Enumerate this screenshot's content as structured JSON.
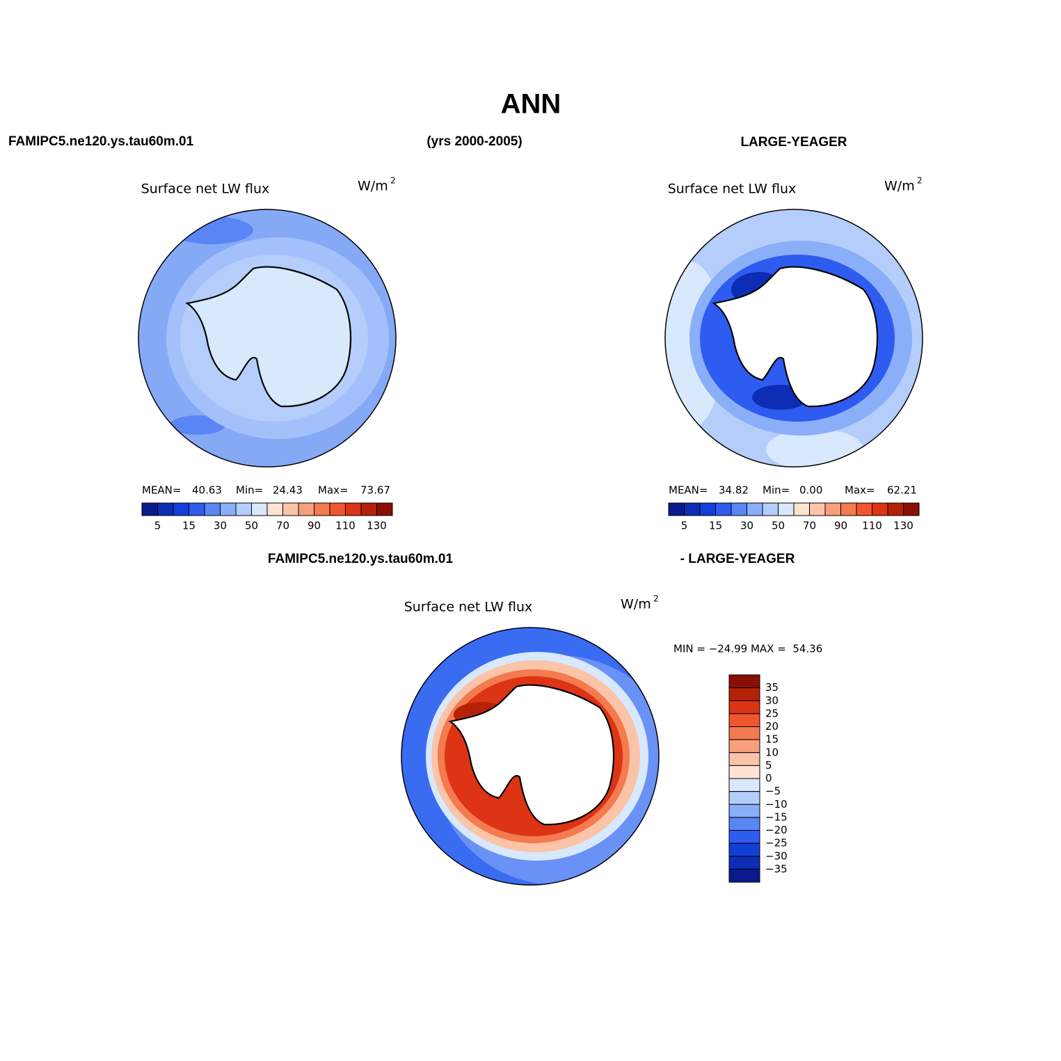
{
  "title": "ANN",
  "header": {
    "left": "FAMIPC5.ne120.ys.tau60m.01",
    "center": "(yrs 2000-2005)",
    "right": "LARGE-YEAGER"
  },
  "panels": [
    {
      "title": "Surface net LW flux",
      "units": "W/m",
      "units_sup": "2",
      "stats": [
        "MEAN=",
        "40.63",
        "Min=",
        "24.43",
        "Max=",
        "73.67"
      ],
      "colorbar_labels": [
        "5",
        "15",
        "30",
        "50",
        "70",
        "90",
        "110",
        "130"
      ]
    },
    {
      "title": "Surface net LW flux",
      "units": "W/m",
      "units_sup": "2",
      "stats": [
        "MEAN=",
        "34.82",
        "Min=",
        "0.00",
        "Max=",
        "62.21"
      ],
      "colorbar_labels": [
        "5",
        "15",
        "30",
        "50",
        "70",
        "90",
        "110",
        "130"
      ]
    }
  ],
  "colorbar_colors": [
    "#0a1a8c",
    "#0c2db4",
    "#1040d8",
    "#2e5cf0",
    "#5a86f5",
    "#8aaef8",
    "#b4cdfb",
    "#d8e8fd",
    "#fde3d2",
    "#fbc4a8",
    "#f7a07c",
    "#f47a50",
    "#f0562e",
    "#dc3414",
    "#b52208",
    "#8a0f04"
  ],
  "difference": {
    "header_left": "FAMIPC5.ne120.ys.tau60m.01",
    "header_right": "- LARGE-YEAGER",
    "title": "Surface net LW flux",
    "units": "W/m",
    "units_sup": "2",
    "stats": "MIN = −24.99 MAX =  54.36",
    "colorbar_labels": [
      "35",
      "30",
      "25",
      "20",
      "15",
      "10",
      "5",
      "0",
      "−5",
      "−10",
      "−15",
      "−20",
      "−25",
      "−30",
      "−35"
    ]
  }
}
